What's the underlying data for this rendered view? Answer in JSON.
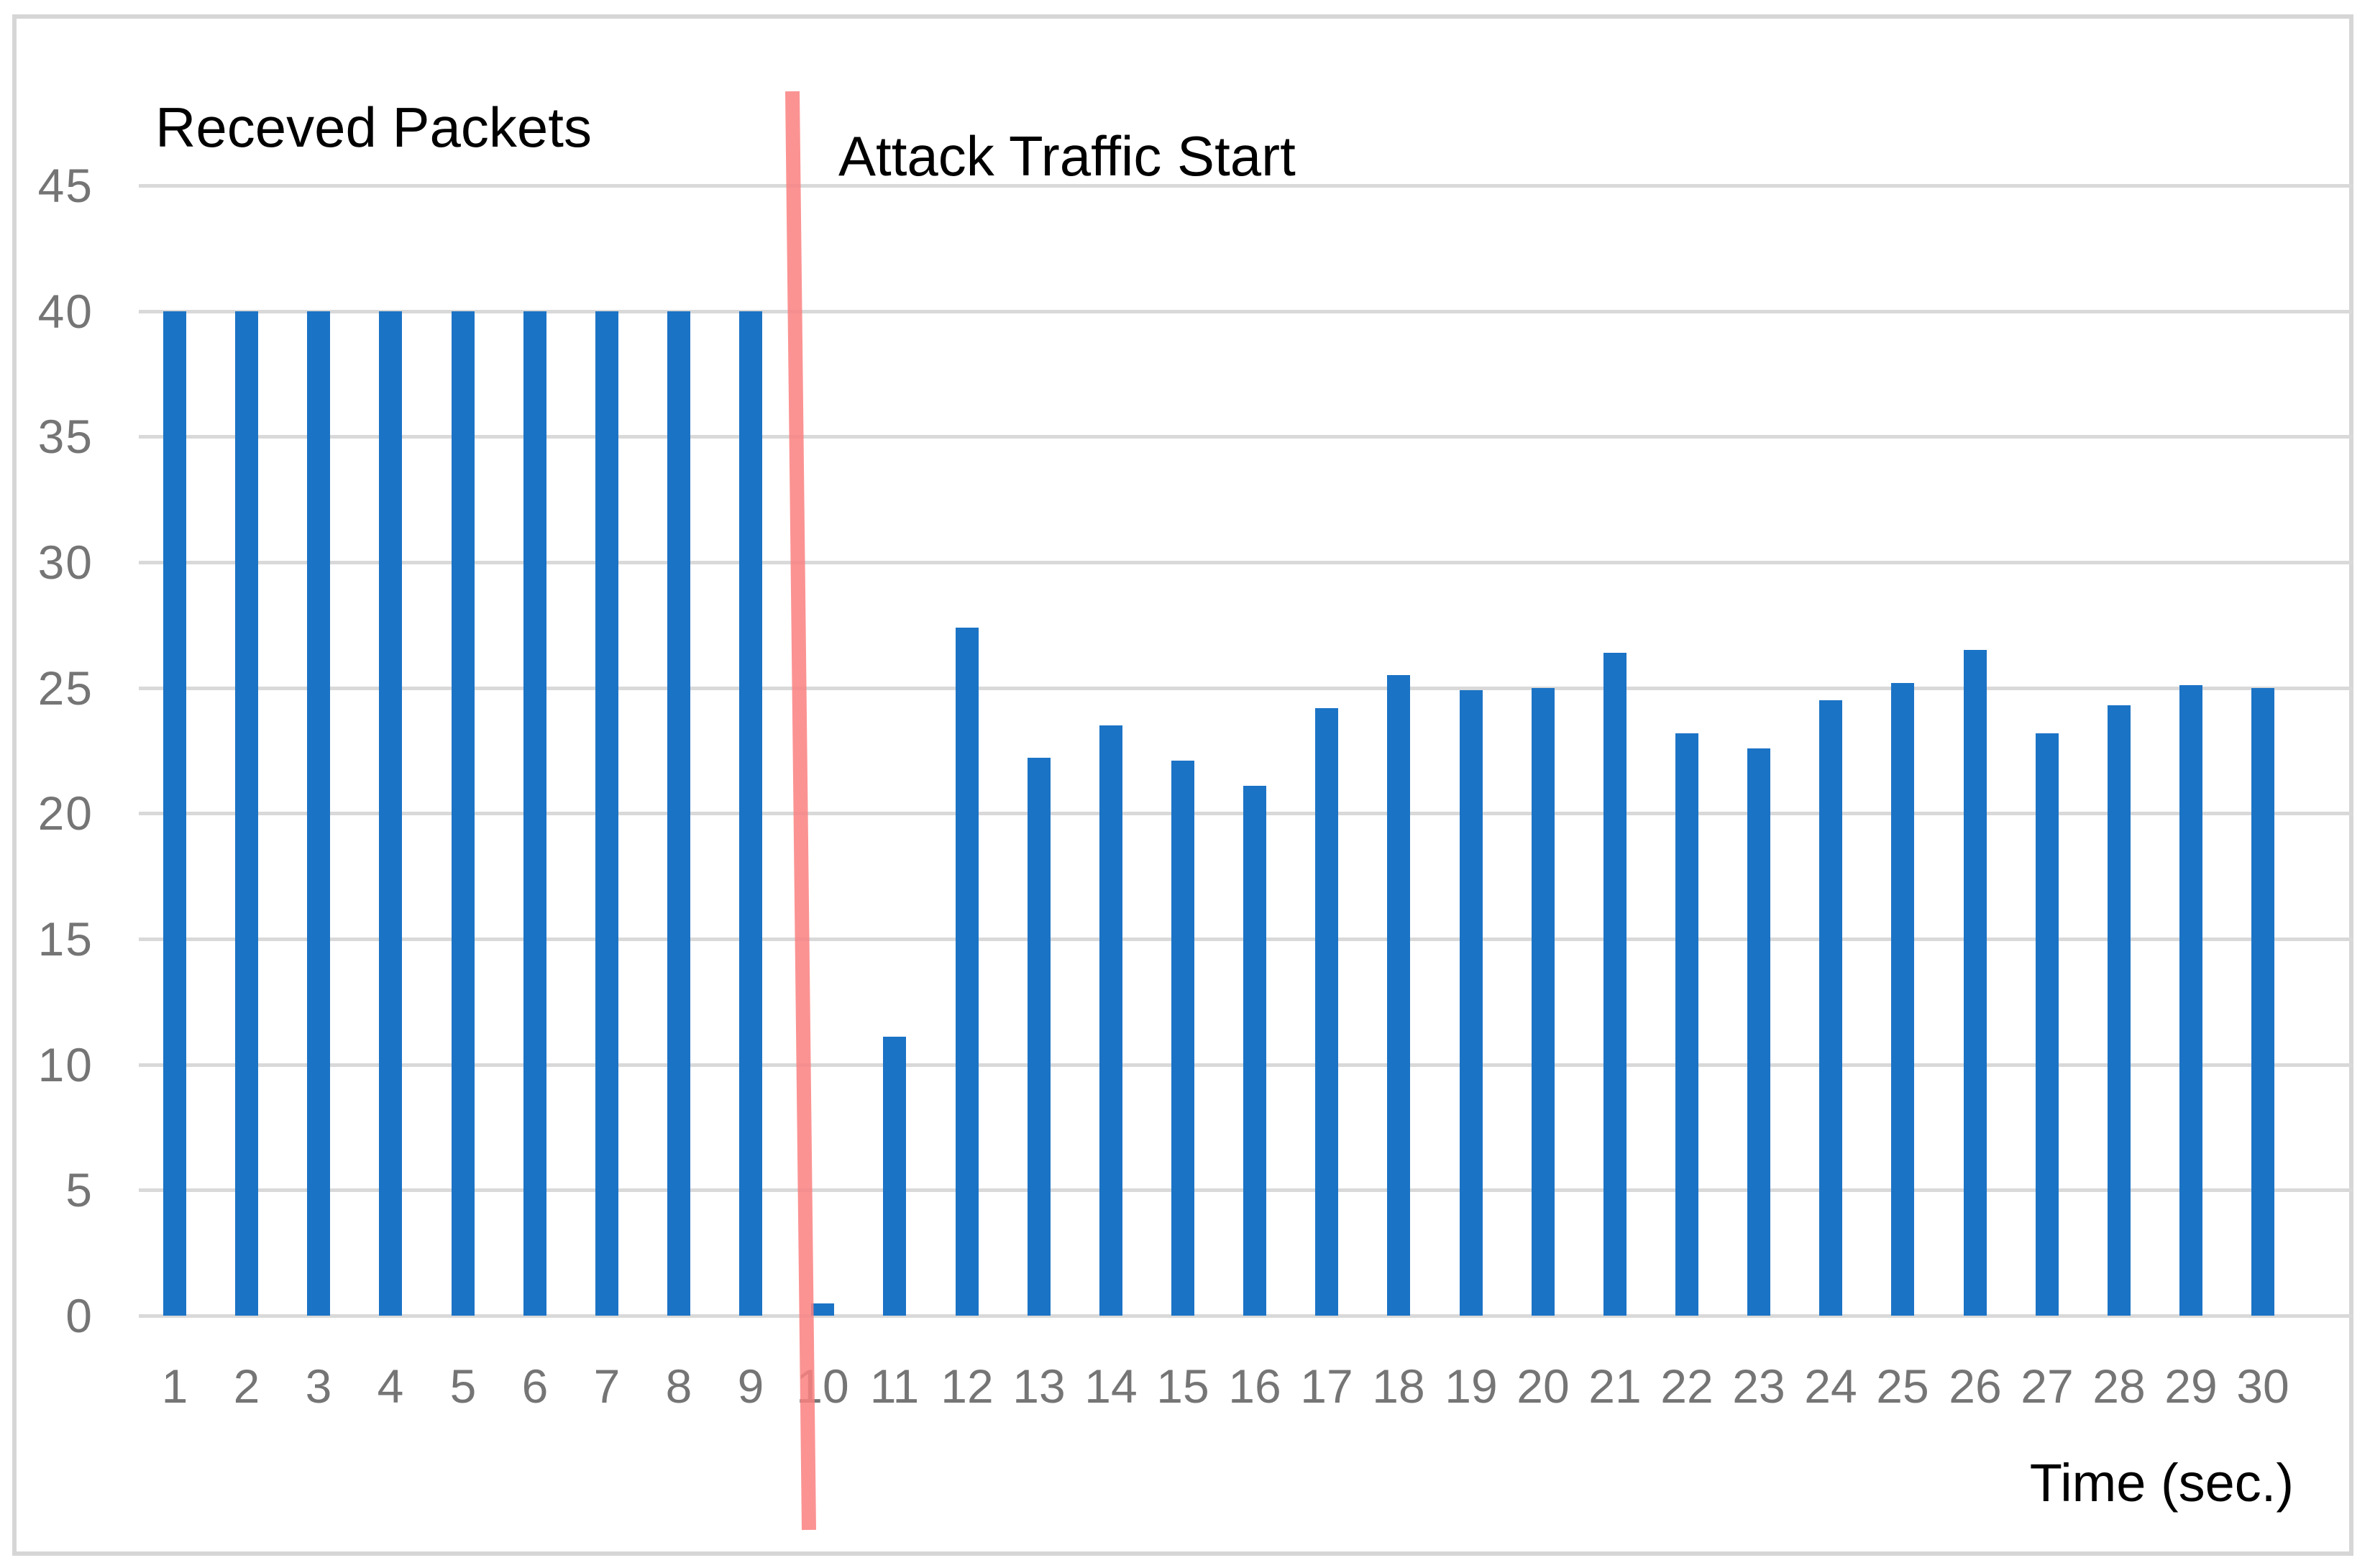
{
  "figure": {
    "title": "Receved Packets",
    "annotation": "Attack Traffic Start",
    "xlabel": "Time (sec.)"
  },
  "chart_data": {
    "type": "bar",
    "title": "Receved Packets",
    "xlabel": "Time (sec.)",
    "ylabel": "",
    "categories": [
      1,
      2,
      3,
      4,
      5,
      6,
      7,
      8,
      9,
      10,
      11,
      12,
      13,
      14,
      15,
      16,
      17,
      18,
      19,
      20,
      21,
      22,
      23,
      24,
      25,
      26,
      27,
      28,
      29,
      30
    ],
    "values": [
      40,
      40,
      40,
      40,
      40,
      40,
      40,
      40,
      40,
      0.5,
      11.1,
      27.4,
      22.2,
      23.5,
      22.1,
      21.1,
      24.2,
      25.5,
      24.9,
      25,
      26.4,
      23.2,
      22.6,
      24.5,
      25.2,
      26.5,
      23.2,
      24.3,
      25.1,
      25
    ],
    "ylim": [
      0,
      45
    ],
    "yticks": [
      0,
      5,
      10,
      15,
      20,
      25,
      30,
      35,
      40,
      45
    ],
    "grid": true,
    "legend": false,
    "annotations": [
      {
        "type": "vline",
        "text": "Attack Traffic Start",
        "position": "between categories 9 and 10",
        "color": "#fb8181"
      }
    ],
    "colors": {
      "bar": "#1b73c5",
      "annotation_line": "#fb8181",
      "gridline": "#d9d9d9",
      "tick_label": "#757575",
      "text": "#000000",
      "border": "#d6d6d6"
    }
  }
}
